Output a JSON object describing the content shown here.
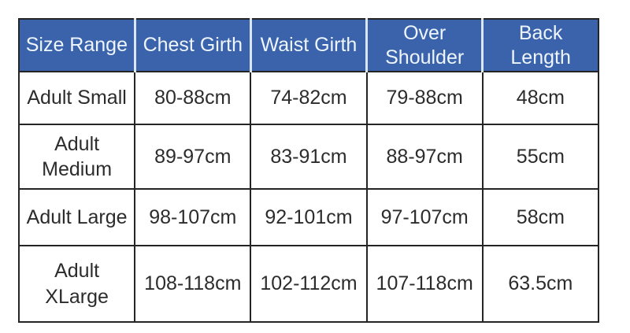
{
  "colors": {
    "header_bg": "#3b63ac",
    "header_text": "#eef5fc",
    "header_divider": "#d9e7f5",
    "border": "#242424",
    "body_text": "#2c2c2c",
    "background": "#ffffff"
  },
  "chart_data": {
    "type": "table",
    "columns": [
      "Size Range",
      "Chest Girth",
      "Waist Girth",
      "Over Shoulder",
      "Back Length"
    ],
    "rows": [
      [
        "Adult Small",
        "80-88cm",
        "74-82cm",
        "79-88cm",
        "48cm"
      ],
      [
        "Adult Medium",
        "89-97cm",
        "83-91cm",
        "88-97cm",
        "55cm"
      ],
      [
        "Adult Large",
        "98-107cm",
        "92-101cm",
        "97-107cm",
        "58cm"
      ],
      [
        "Adult XLarge",
        "108-118cm",
        "102-112cm",
        "107-118cm",
        "63.5cm"
      ]
    ]
  }
}
